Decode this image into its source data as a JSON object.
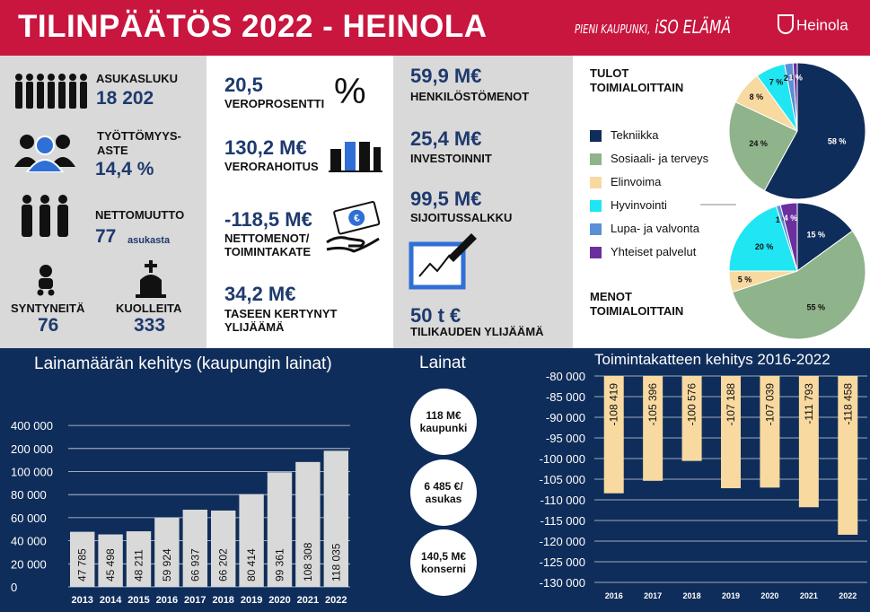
{
  "header": {
    "title": "TILINPÄÄTÖS 2022 - HEINOLA",
    "slogan_small": "PIENI KAUPUNKI,",
    "slogan_big": "iSO ELÄMÄ",
    "logo": "Heinola",
    "accent": "#c8163f"
  },
  "population": {
    "asukasluku_label": "ASUKASLUKU",
    "asukasluku_value": "18 202",
    "tyottomyys_label1": "TYÖTTÖMYYS-",
    "tyottomyys_label2": "ASTE",
    "tyottomyys_value": "14,4 %",
    "nettomuutto_label": "NETTOMUUTTO",
    "nettomuutto_value": "77",
    "nettomuutto_unit": "asukasta",
    "syntyneita_label": "SYNTYNEITÄ",
    "syntyneita_value": "76",
    "kuolleita_label": "KUOLLEITA",
    "kuolleita_value": "333"
  },
  "finance": {
    "vero_value": "20,5",
    "vero_label": "VEROPROSENTTI",
    "vero_symbol": "%",
    "verorahoitus_value": "130,2 M€",
    "verorahoitus_label": "VERORAHOITUS",
    "nettomenot_value": "-118,5 M€",
    "nettomenot_label1": "NETTOMENOT/",
    "nettomenot_label2": "TOIMINTAKATE",
    "taseen_value": "34,2 M€",
    "taseen_label1": "TASEEN KERTYNYT",
    "taseen_label2": "YLIJÄÄMÄ"
  },
  "finance2": {
    "henkilosto_value": "59,9 M€",
    "henkilosto_label": "HENKILÖSTÖMENOT",
    "investoinnit_value": "25,4 M€",
    "investoinnit_label": "INVESTOINNIT",
    "sijoitus_value": "99,5 M€",
    "sijoitus_label": "SIJOITUSSALKKU",
    "ylijaama_value": "50 t €",
    "ylijaama_label": "TILIKAUDEN YLIJÄÄMÄ"
  },
  "lainat": {
    "title": "Lainat",
    "c1_value": "118 M€",
    "c1_label": "kaupunki",
    "c2_value": "6 485 €/",
    "c2_label": "asukas",
    "c3_value": "140,5 M€",
    "c3_label": "konserni"
  },
  "chart_data": [
    {
      "type": "pie",
      "title": "TULOT TOIMIALOITTAIN",
      "categories": [
        "Tekniikka",
        "Sosiaali- ja terveys",
        "Elinvoima",
        "Hyvinvointi",
        "Lupa- ja valvonta",
        "Yhteiset palvelut"
      ],
      "values": [
        58,
        24,
        8,
        7,
        2,
        1
      ],
      "labels": [
        "58 %",
        "24 %",
        "8 %",
        "7 %",
        "2 %",
        "1 %"
      ],
      "colors": [
        "#0f2d5a",
        "#8fb38a",
        "#f8d9a0",
        "#1fe6f2",
        "#5b8fd6",
        "#6b2fa0"
      ]
    },
    {
      "type": "pie",
      "title": "MENOT TOIMIALOITTAIN",
      "categories": [
        "Tekniikka",
        "Sosiaali- ja terveys",
        "Elinvoima",
        "Hyvinvointi",
        "Lupa- ja valvonta",
        "Yhteiset palvelut"
      ],
      "values": [
        15,
        55,
        5,
        20,
        1,
        4
      ],
      "labels": [
        "15 %",
        "55 %",
        "5 %",
        "20 %",
        "1 %",
        "4 %"
      ],
      "colors": [
        "#0f2d5a",
        "#8fb38a",
        "#f8d9a0",
        "#1fe6f2",
        "#5b8fd6",
        "#6b2fa0"
      ]
    },
    {
      "type": "bar",
      "title": "Lainamäärän kehitys (kaupungin lainat)",
      "categories": [
        "2013",
        "2014",
        "2015",
        "2016",
        "2017",
        "2018",
        "2019",
        "2020",
        "2021",
        "2022"
      ],
      "values": [
        47785,
        45498,
        48211,
        59924,
        66937,
        66202,
        80414,
        99361,
        108308,
        118035
      ],
      "value_labels": [
        "47 785",
        "45 498",
        "48 211",
        "59 924",
        "66 937",
        "66 202",
        "80 414",
        "99 361",
        "108 308",
        "118 035"
      ],
      "y_ticks": [
        "0",
        "20 000",
        "40 000",
        "60 000",
        "80 000",
        "100 000",
        "200 000",
        "400 000"
      ],
      "bar_color": "#d9d9d9"
    },
    {
      "type": "bar",
      "title": "Toimintakatteen kehitys 2016-2022",
      "categories": [
        "2016",
        "2017",
        "2018",
        "2019",
        "2020",
        "2021",
        "2022"
      ],
      "values": [
        -108419,
        -105396,
        -100576,
        -107188,
        -107039,
        -111793,
        -118458
      ],
      "value_labels": [
        "-108 419",
        "-105 396",
        "-100 576",
        "-107 188",
        "-107 039",
        "-111 793",
        "-118 458"
      ],
      "ylim": [
        -130000,
        -80000
      ],
      "y_ticks": [
        "-80 000",
        "-85 000",
        "-90 000",
        "-95 000",
        "-100 000",
        "-105 000",
        "-110 000",
        "-115 000",
        "-120 000",
        "-125 000",
        "-130 000"
      ],
      "bar_color": "#f8d9a0"
    }
  ]
}
